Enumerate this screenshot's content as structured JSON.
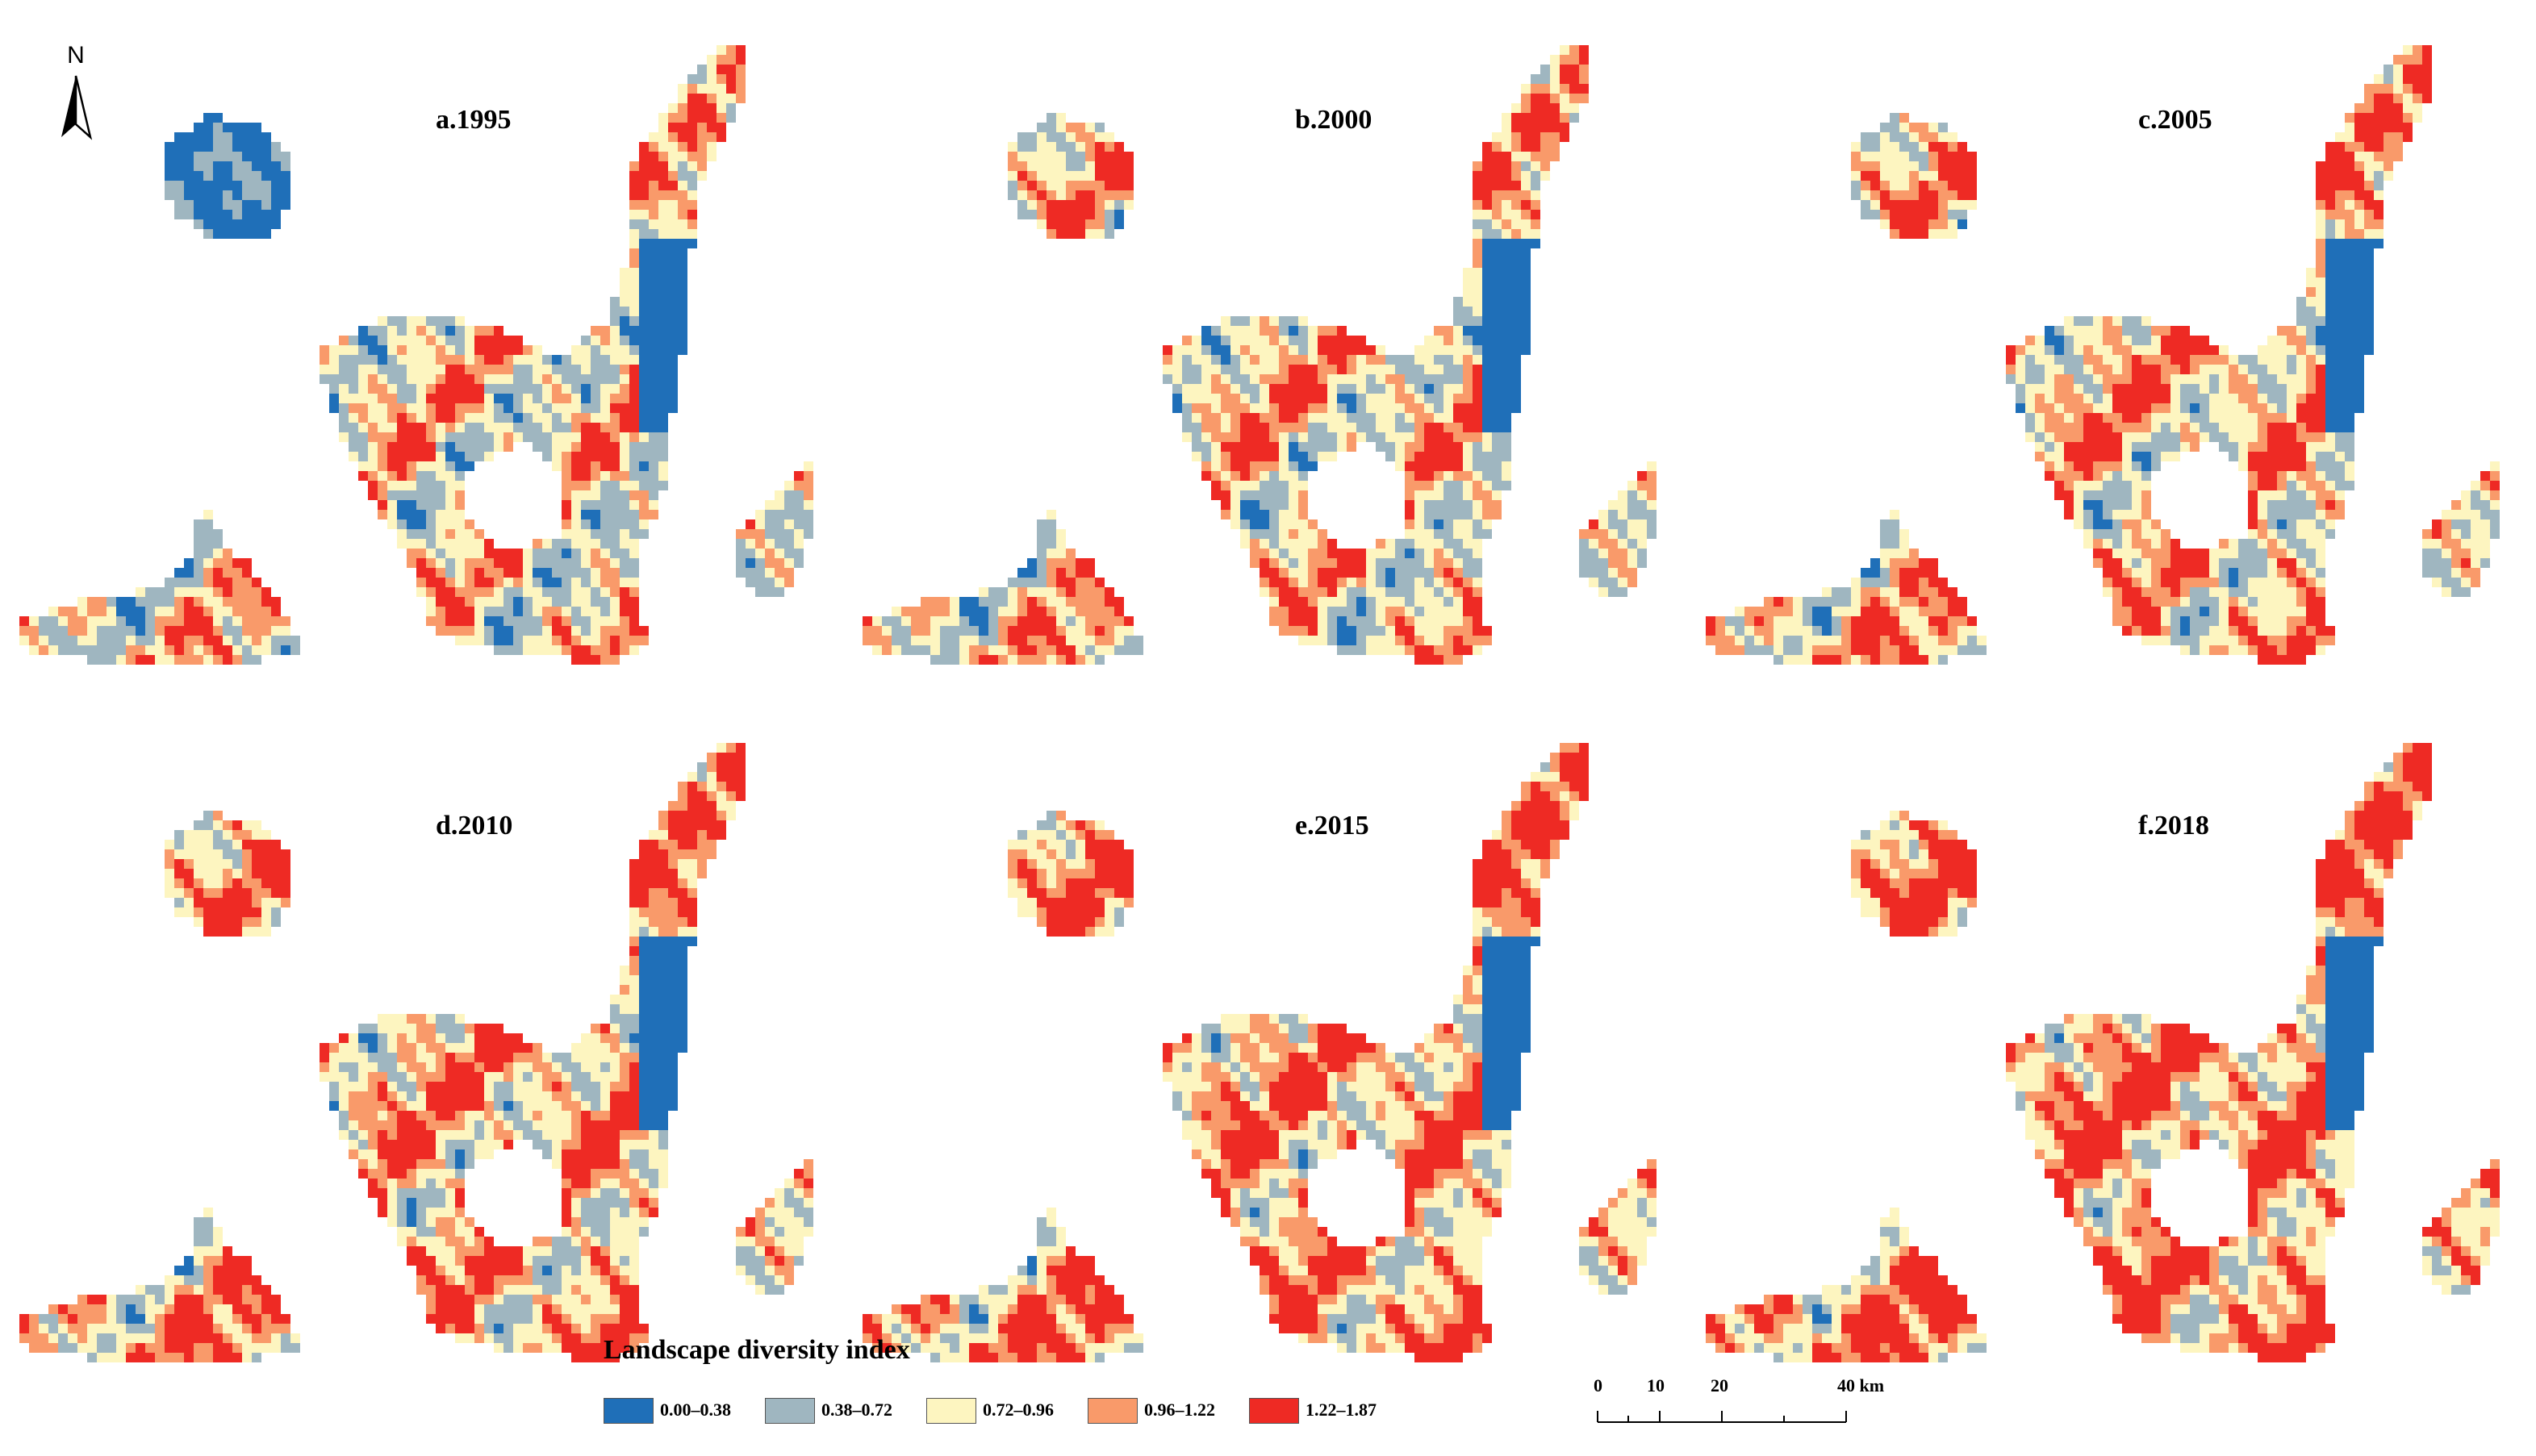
{
  "panels": [
    {
      "title": "a.1995"
    },
    {
      "title": "b.2000"
    },
    {
      "title": "c.2005"
    },
    {
      "title": "d.2010"
    },
    {
      "title": "e.2015"
    },
    {
      "title": "f.2018"
    }
  ],
  "north_arrow": {
    "letter": "N"
  },
  "legend": {
    "title": "Landscape diversity index",
    "classes": [
      {
        "label": "0.00–0.38",
        "color": "#1f6fb8"
      },
      {
        "label": "0.38–0.72",
        "color": "#9fb6c0"
      },
      {
        "label": "0.72–0.96",
        "color": "#fdf5c0"
      },
      {
        "label": "0.96–1.22",
        "color": "#f99a6a"
      },
      {
        "label": "1.22–1.87",
        "color": "#ee2a24"
      }
    ]
  },
  "scale_bar": {
    "labels": [
      "0",
      "10",
      "20",
      "40 km"
    ],
    "values_km": [
      0,
      10,
      20,
      40
    ]
  }
}
